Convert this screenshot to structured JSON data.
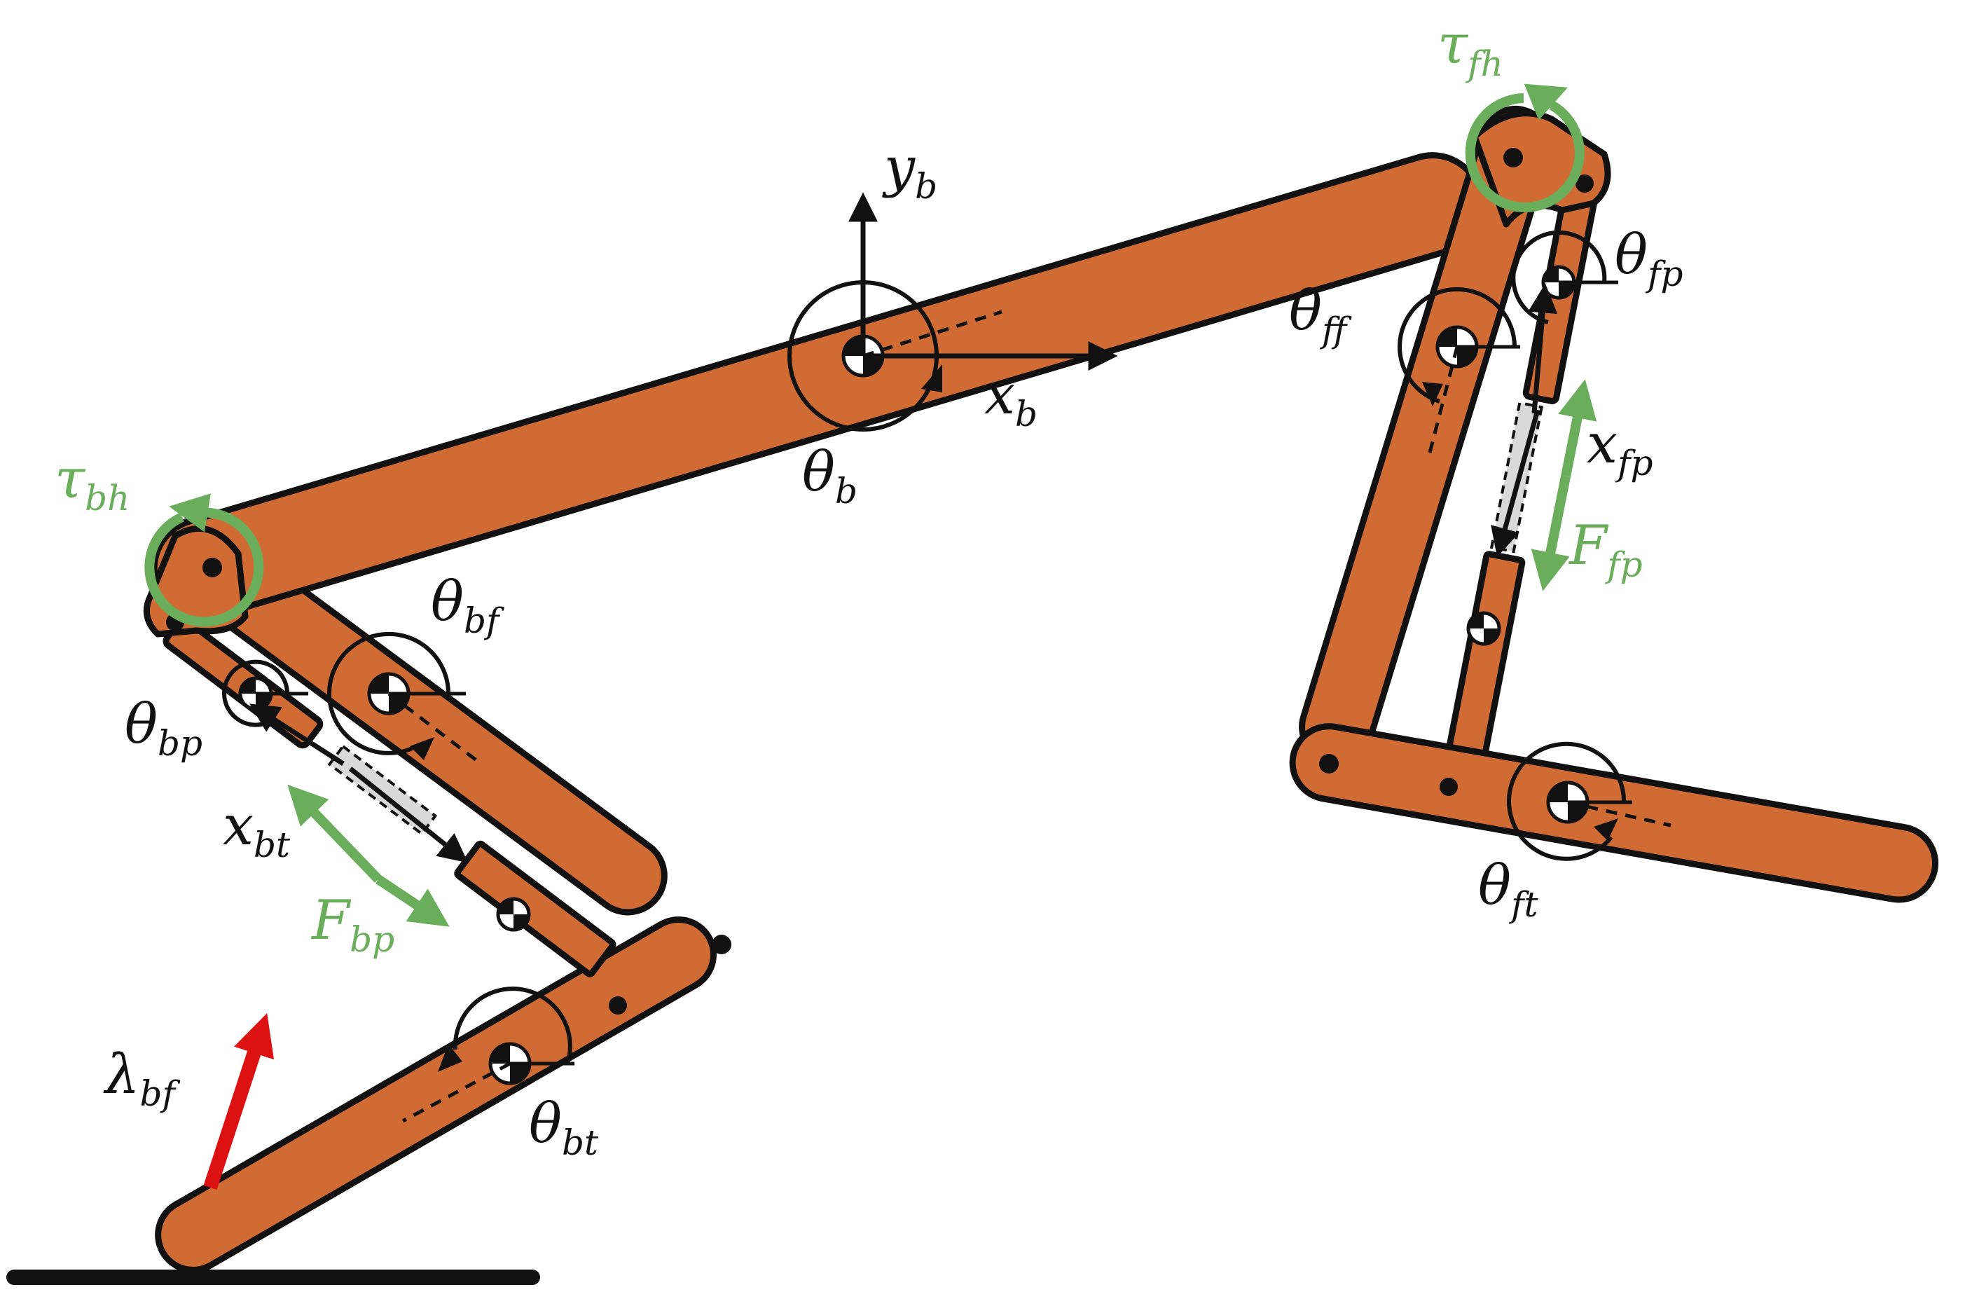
{
  "labels": {
    "y_b": {
      "main": "y",
      "sub": "b"
    },
    "x_b": {
      "main": "x",
      "sub": "b"
    },
    "theta_b": {
      "main": "θ",
      "sub": "b"
    },
    "tau_fh": {
      "main": "τ",
      "sub": "fh"
    },
    "tau_bh": {
      "main": "τ",
      "sub": "bh"
    },
    "theta_ff": {
      "main": "θ",
      "sub": "ff"
    },
    "theta_fp": {
      "main": "θ",
      "sub": "fp"
    },
    "x_fp": {
      "main": "x",
      "sub": "fp"
    },
    "F_fp": {
      "main": "F",
      "sub": "fp"
    },
    "theta_ft": {
      "main": "θ",
      "sub": "ft"
    },
    "theta_bf": {
      "main": "θ",
      "sub": "bf"
    },
    "theta_bp": {
      "main": "θ",
      "sub": "bp"
    },
    "x_bt": {
      "main": "x",
      "sub": "bt"
    },
    "F_bp": {
      "main": "F",
      "sub": "bp"
    },
    "theta_bt": {
      "main": "θ",
      "sub": "bt"
    },
    "lambda_bf": {
      "main": "λ",
      "sub": "bf"
    }
  },
  "colors": {
    "link": "#d16b34",
    "outline": "#111111",
    "torque_force": "#6aad5b",
    "ground_reaction": "#dd1111",
    "spring": "#d9d9d9"
  }
}
